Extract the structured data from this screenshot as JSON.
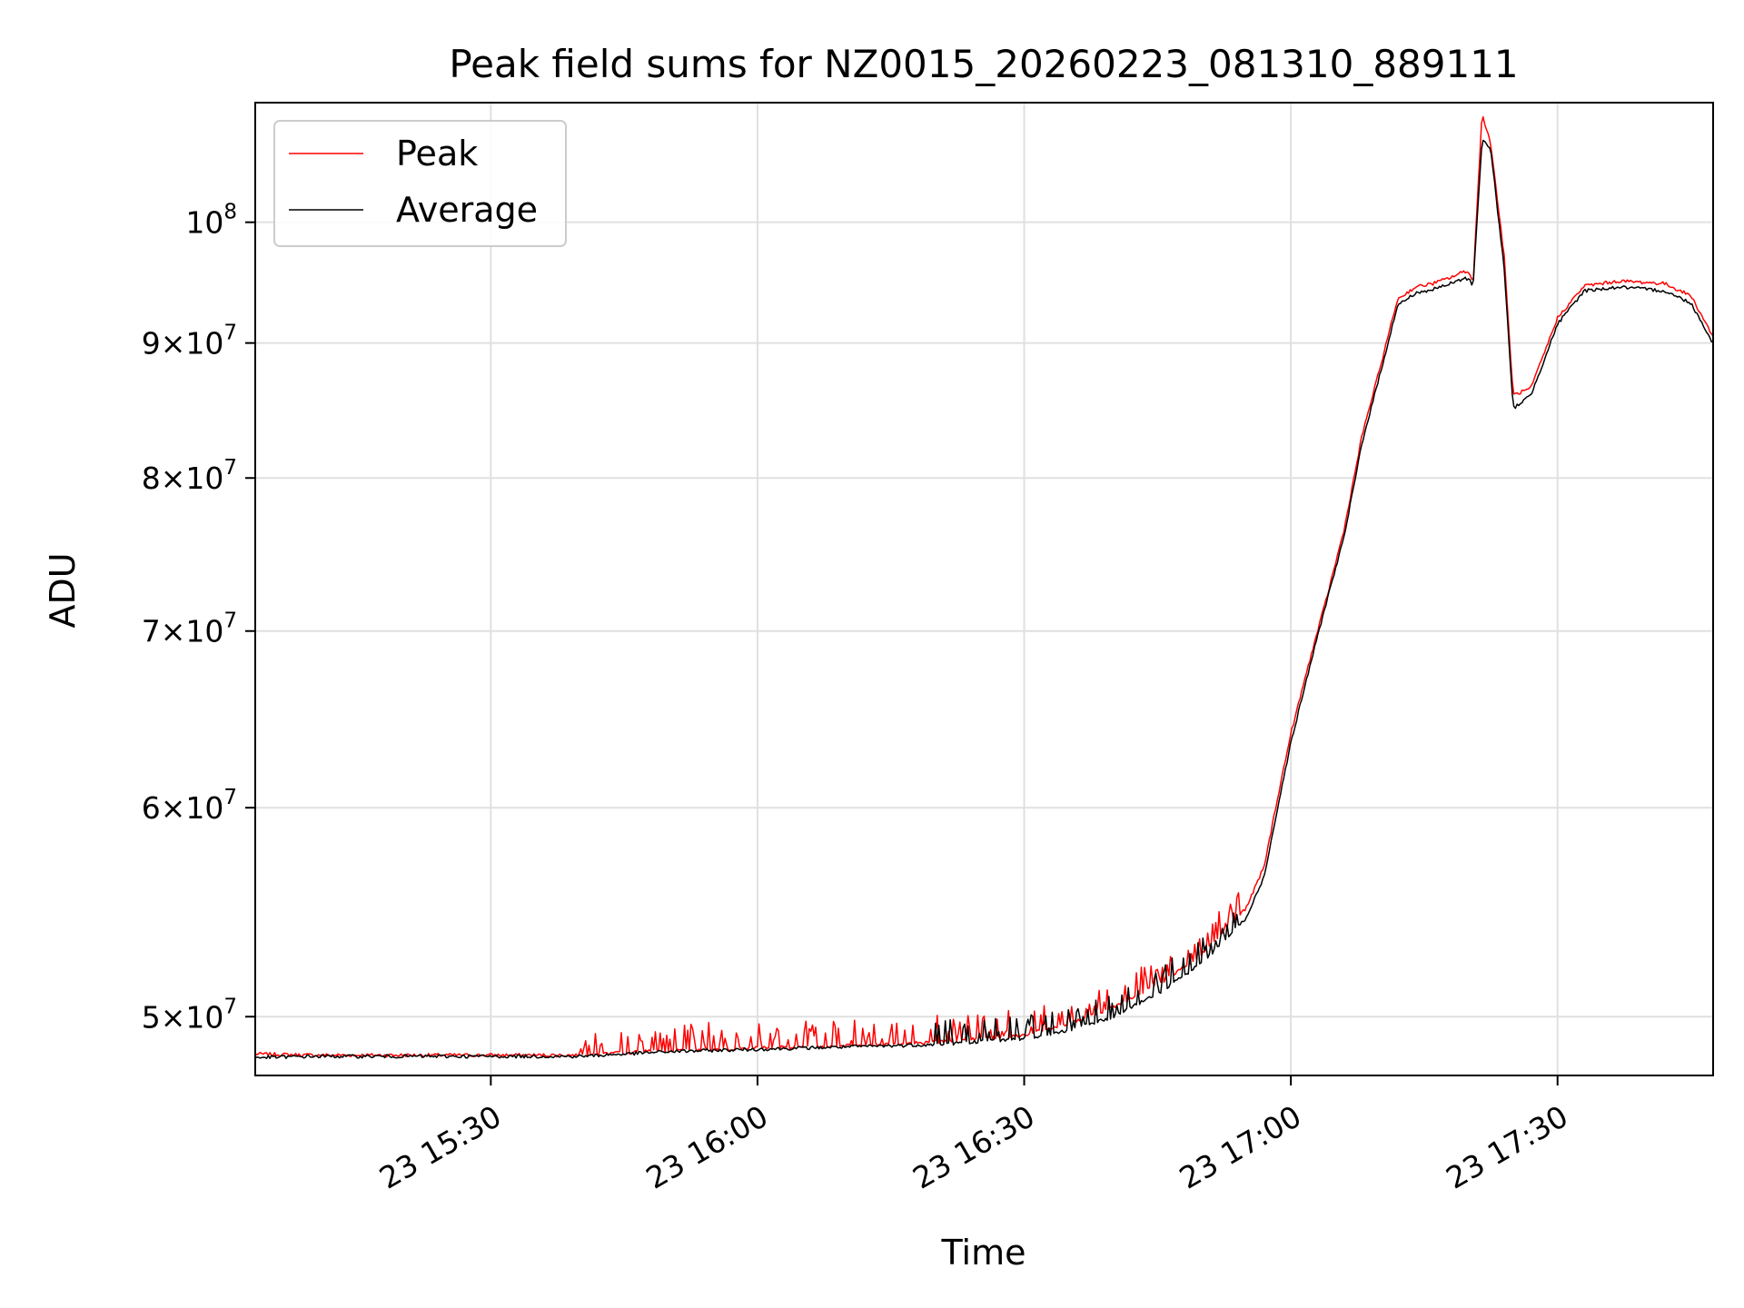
{
  "chart_data": {
    "type": "line",
    "title": "Peak field sums for NZ0015_20260223_081310_889111",
    "xlabel": "Time",
    "ylabel": "ADU",
    "yscale": "log",
    "ylim": [
      47500000,
      111000000
    ],
    "xlim": [
      "2026-02-23T15:03:30",
      "2026-02-23T17:47:30"
    ],
    "x_ticks": [
      {
        "value": "2026-02-23T15:30:00",
        "label": "23 15:30"
      },
      {
        "value": "2026-02-23T16:00:00",
        "label": "23 16:00"
      },
      {
        "value": "2026-02-23T16:30:00",
        "label": "23 16:30"
      },
      {
        "value": "2026-02-23T17:00:00",
        "label": "23 17:00"
      },
      {
        "value": "2026-02-23T17:30:00",
        "label": "23 17:30"
      }
    ],
    "y_ticks": [
      {
        "value": 50000000,
        "mant": "5",
        "exp": "7"
      },
      {
        "value": 60000000,
        "mant": "6",
        "exp": "7"
      },
      {
        "value": 70000000,
        "mant": "7",
        "exp": "7"
      },
      {
        "value": 80000000,
        "mant": "8",
        "exp": "7"
      },
      {
        "value": 90000000,
        "mant": "9",
        "exp": "7"
      },
      {
        "value": 100000000,
        "mant": "",
        "exp": "8"
      }
    ],
    "grid": true,
    "legend_position": "top-left",
    "series": [
      {
        "name": "Peak",
        "color": "#ff0000",
        "x": [
          "2026-02-23T15:03:30",
          "2026-02-23T15:10:00",
          "2026-02-23T15:20:00",
          "2026-02-23T15:30:00",
          "2026-02-23T15:40:00",
          "2026-02-23T15:45:00",
          "2026-02-23T15:50:00",
          "2026-02-23T16:00:00",
          "2026-02-23T16:10:00",
          "2026-02-23T16:20:00",
          "2026-02-23T16:30:00",
          "2026-02-23T16:35:00",
          "2026-02-23T16:40:00",
          "2026-02-23T16:45:00",
          "2026-02-23T16:50:00",
          "2026-02-23T16:55:00",
          "2026-02-23T16:57:00",
          "2026-02-23T16:58:30",
          "2026-02-23T17:00:00",
          "2026-02-23T17:02:00",
          "2026-02-23T17:04:00",
          "2026-02-23T17:06:00",
          "2026-02-23T17:08:00",
          "2026-02-23T17:10:00",
          "2026-02-23T17:12:00",
          "2026-02-23T17:14:00",
          "2026-02-23T17:16:00",
          "2026-02-23T17:18:00",
          "2026-02-23T17:19:30",
          "2026-02-23T17:20:00",
          "2026-02-23T17:20:30",
          "2026-02-23T17:21:30",
          "2026-02-23T17:22:30",
          "2026-02-23T17:24:00",
          "2026-02-23T17:25:00",
          "2026-02-23T17:27:00",
          "2026-02-23T17:30:00",
          "2026-02-23T17:33:00",
          "2026-02-23T17:37:00",
          "2026-02-23T17:42:00",
          "2026-02-23T17:45:00",
          "2026-02-23T17:47:30"
        ],
        "values": [
          48400000,
          48350000,
          48350000,
          48350000,
          48350000,
          48450000,
          48550000,
          48650000,
          48750000,
          48900000,
          49200000,
          49700000,
          50400000,
          51400000,
          52800000,
          55000000,
          57000000,
          60500000,
          64000000,
          68000000,
          72000000,
          76500000,
          83000000,
          88000000,
          93500000,
          94500000,
          94800000,
          95300000,
          95800000,
          95800000,
          94800000,
          110000000,
          107000000,
          97000000,
          86000000,
          86500000,
          92000000,
          94600000,
          95000000,
          94800000,
          93800000,
          90500000
        ],
        "spike_window": [
          "2026-02-23T15:40:00",
          "2026-02-23T16:55:00"
        ]
      },
      {
        "name": "Average",
        "color": "#000000",
        "x": [
          "2026-02-23T15:03:30",
          "2026-02-23T15:10:00",
          "2026-02-23T15:20:00",
          "2026-02-23T15:30:00",
          "2026-02-23T15:40:00",
          "2026-02-23T15:45:00",
          "2026-02-23T15:50:00",
          "2026-02-23T16:00:00",
          "2026-02-23T16:10:00",
          "2026-02-23T16:20:00",
          "2026-02-23T16:30:00",
          "2026-02-23T16:35:00",
          "2026-02-23T16:40:00",
          "2026-02-23T16:45:00",
          "2026-02-23T16:50:00",
          "2026-02-23T16:55:00",
          "2026-02-23T16:57:00",
          "2026-02-23T16:58:30",
          "2026-02-23T17:00:00",
          "2026-02-23T17:02:00",
          "2026-02-23T17:04:00",
          "2026-02-23T17:06:00",
          "2026-02-23T17:08:00",
          "2026-02-23T17:10:00",
          "2026-02-23T17:12:00",
          "2026-02-23T17:14:00",
          "2026-02-23T17:16:00",
          "2026-02-23T17:18:00",
          "2026-02-23T17:19:30",
          "2026-02-23T17:20:00",
          "2026-02-23T17:20:30",
          "2026-02-23T17:21:30",
          "2026-02-23T17:22:30",
          "2026-02-23T17:24:00",
          "2026-02-23T17:25:00",
          "2026-02-23T17:27:00",
          "2026-02-23T17:30:00",
          "2026-02-23T17:33:00",
          "2026-02-23T17:37:00",
          "2026-02-23T17:42:00",
          "2026-02-23T17:45:00",
          "2026-02-23T17:47:30"
        ],
        "values": [
          48250000,
          48300000,
          48300000,
          48300000,
          48300000,
          48400000,
          48500000,
          48600000,
          48700000,
          48800000,
          49050000,
          49400000,
          50000000,
          51000000,
          52400000,
          54500000,
          56500000,
          60000000,
          63500000,
          67600000,
          71800000,
          76000000,
          82500000,
          87500000,
          93000000,
          94000000,
          94300000,
          94800000,
          95200000,
          95200000,
          94600000,
          107500000,
          106500000,
          96000000,
          85000000,
          86000000,
          91500000,
          94200000,
          94500000,
          94200000,
          93200000,
          90000000
        ],
        "spike_window": [
          "2026-02-23T16:20:00",
          "2026-02-23T16:55:00"
        ]
      }
    ]
  }
}
